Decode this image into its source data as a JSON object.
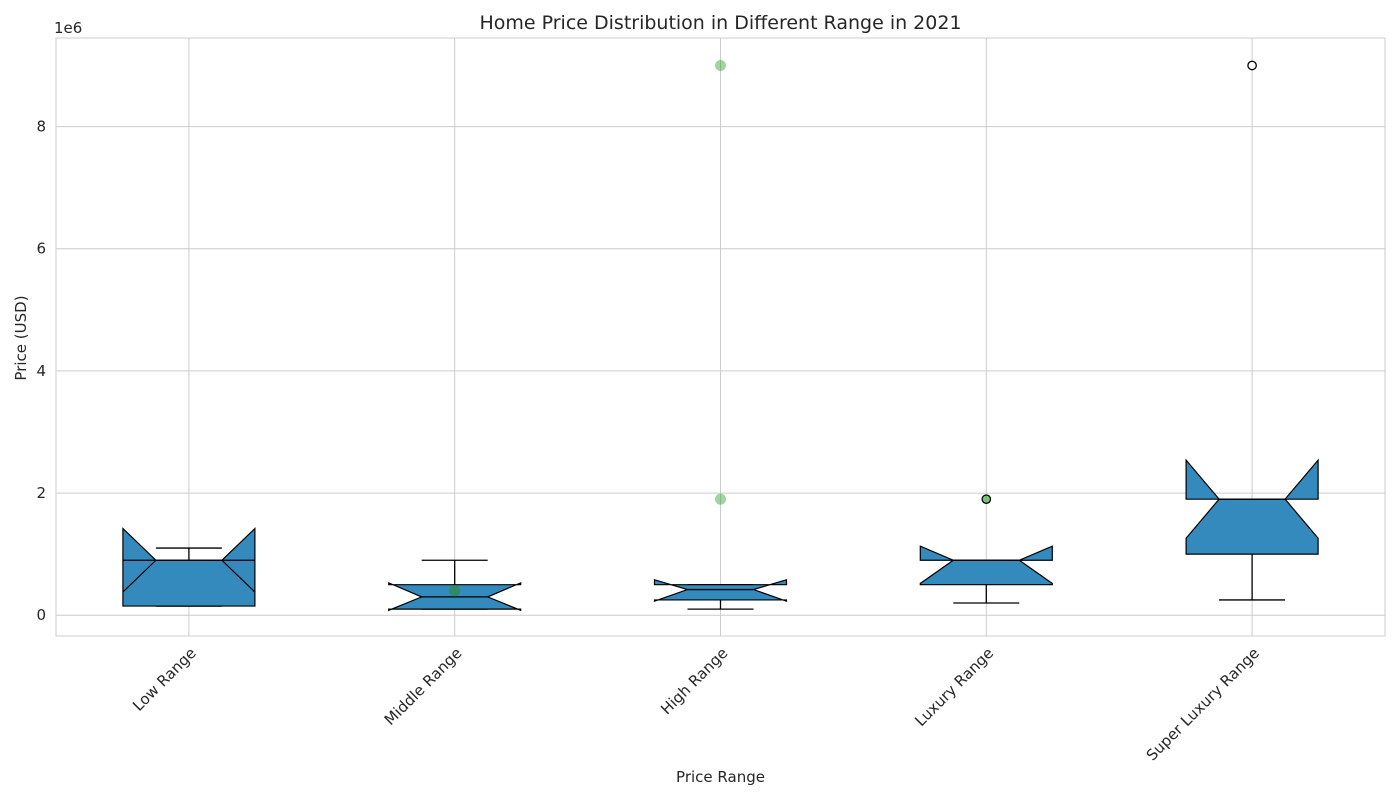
{
  "chart_data": {
    "type": "boxplot",
    "title": "Home Price Distribution in Different Range in 2021",
    "xlabel": "Price Range",
    "ylabel": "Price (USD)",
    "y_offset_label": "1e6",
    "ylim": [
      -340000,
      9450000
    ],
    "y_ticks": [
      0,
      2000000,
      4000000,
      6000000,
      8000000
    ],
    "y_tick_labels": [
      "0",
      "2",
      "4",
      "6",
      "8"
    ],
    "grid": true,
    "notched": true,
    "box_color": "#348abd",
    "box_edge_color": "#000000",
    "outlier_marker_color": "#2ca02c",
    "categories": [
      "Low Range",
      "Middle Range",
      "High Range",
      "Luxury Range",
      "Super Luxury Range"
    ],
    "boxes": [
      {
        "whisker_low": 150000,
        "q1": 150000,
        "median": 900000,
        "q3": 900000,
        "whisker_high": 1100000,
        "notch_low": 1420000,
        "notch_high": 380000,
        "outliers": []
      },
      {
        "whisker_low": 100000,
        "q1": 100000,
        "median": 300000,
        "q3": 500000,
        "whisker_high": 900000,
        "notch_low": 80000,
        "notch_high": 530000,
        "outliers": [],
        "extra_points": [
          {
            "value": 400000,
            "color": "#2e8b57",
            "alpha": 0.85
          }
        ]
      },
      {
        "whisker_low": 100000,
        "q1": 250000,
        "median": 420000,
        "q3": 500000,
        "whisker_high": 500000,
        "notch_low": 230000,
        "notch_high": 580000,
        "outliers": [
          {
            "value": 1900000,
            "color": "#2ca02c",
            "alpha": 0.45
          },
          {
            "value": 9000000,
            "color": "#2ca02c",
            "alpha": 0.45
          }
        ]
      },
      {
        "whisker_low": 200000,
        "q1": 500000,
        "median": 900000,
        "q3": 900000,
        "whisker_high": 900000,
        "notch_low": 520000,
        "notch_high": 1130000,
        "outliers": [
          {
            "value": 1900000,
            "color": "#2ca02c",
            "alpha": 0.6,
            "edge": "#000000"
          }
        ]
      },
      {
        "whisker_low": 250000,
        "q1": 1000000,
        "median": 1900000,
        "q3": 1900000,
        "whisker_high": 1900000,
        "notch_low": 1260000,
        "notch_high": 2540000,
        "outliers": [
          {
            "value": 9000000,
            "color": "#ffffff",
            "alpha": 1,
            "edge": "#000000"
          }
        ]
      }
    ]
  }
}
